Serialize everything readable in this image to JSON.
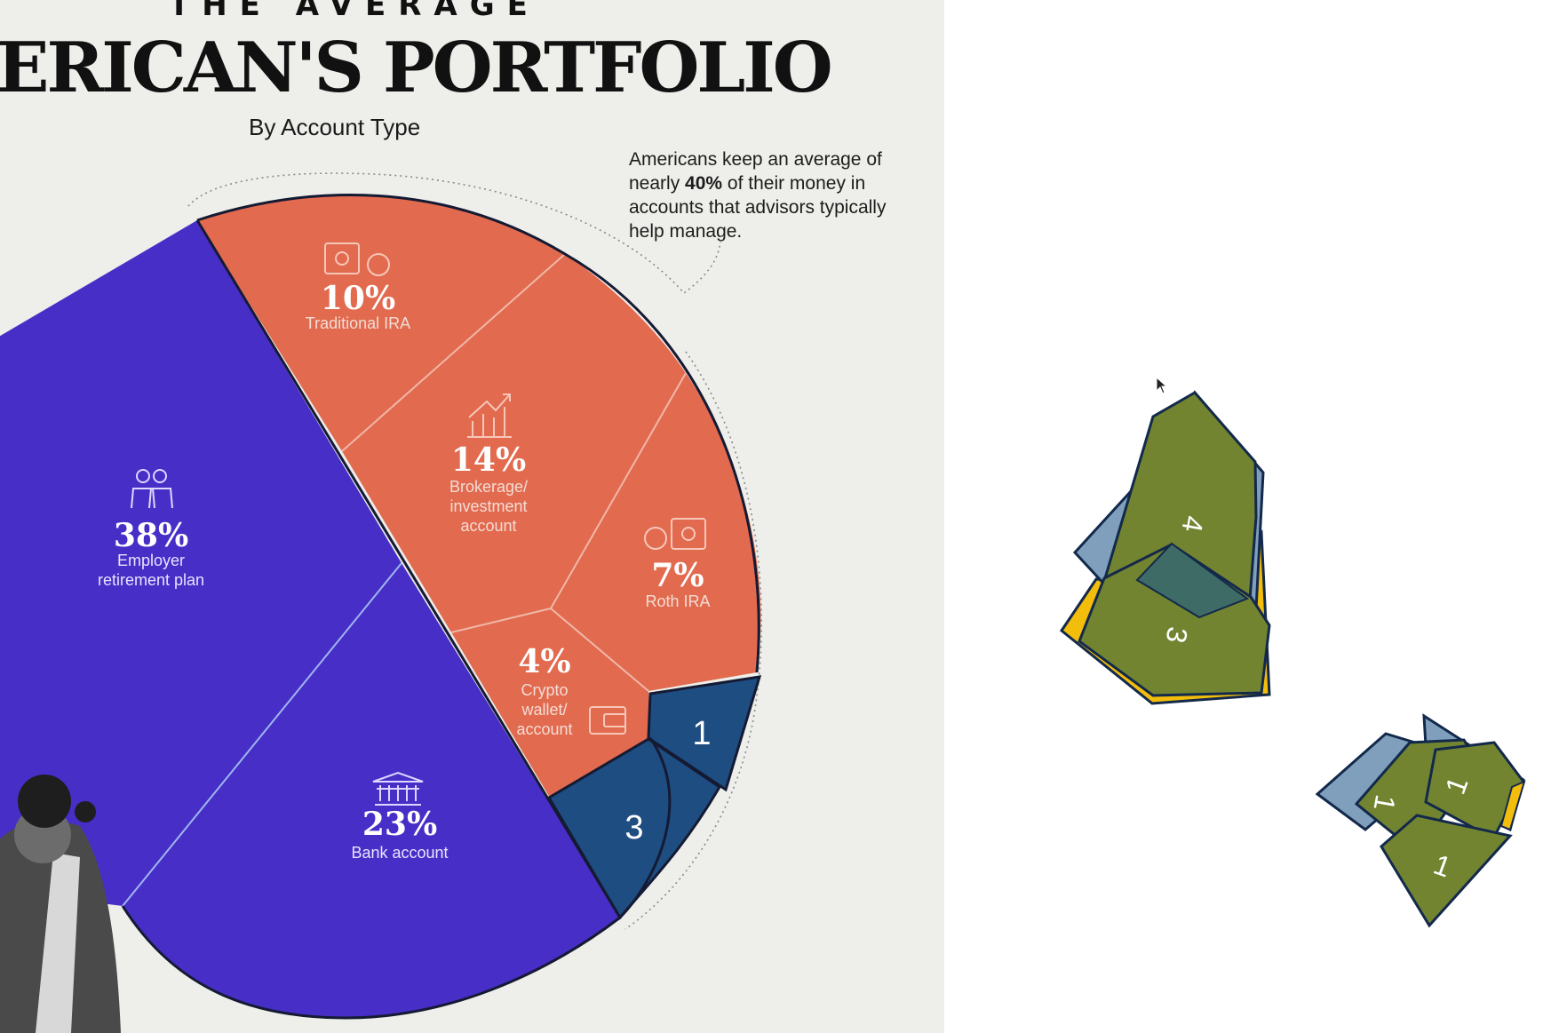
{
  "header": {
    "kicker": "THE AVERAGE",
    "title": "ERICAN'S PORTFOLIO",
    "subtitle": "By Account Type"
  },
  "callout": {
    "line1": "Americans keep an average of",
    "line2_pre": "nearly ",
    "line2_bold": "40%",
    "line2_post": " of their money in",
    "line3": "accounts that advisors typically",
    "line4": "help manage."
  },
  "chart_data": {
    "type": "pie",
    "title": "ERICAN'S PORTFOLIO",
    "subtitle": "By Account Type",
    "slices": [
      {
        "label": "Employer retirement plan",
        "label_lines": [
          "Employer",
          "retirement plan"
        ],
        "pct_text": "38%",
        "value": 38,
        "group": "blue",
        "icon": "people-icon"
      },
      {
        "label": "Bank account",
        "label_lines": [
          "Bank account"
        ],
        "pct_text": "23%",
        "value": 23,
        "group": "blue",
        "icon": "bank-icon"
      },
      {
        "label": "Traditional IRA",
        "label_lines": [
          "Traditional IRA"
        ],
        "pct_text": "10%",
        "value": 10,
        "group": "orange",
        "icon": "safe-tax-icon"
      },
      {
        "label": "Brokerage/ investment account",
        "label_lines": [
          "Brokerage/",
          "investment",
          "account"
        ],
        "pct_text": "14%",
        "value": 14,
        "group": "orange",
        "icon": "growth-chart-icon"
      },
      {
        "label": "Roth IRA",
        "label_lines": [
          "Roth IRA"
        ],
        "pct_text": "7%",
        "value": 7,
        "group": "orange",
        "icon": "tax-safe-icon"
      },
      {
        "label": "Crypto wallet/ account",
        "label_lines": [
          "Crypto",
          "wallet/",
          "account"
        ],
        "pct_text": "4%",
        "value": 4,
        "group": "orange",
        "icon": "wallet-icon"
      }
    ],
    "markers": [
      {
        "number": "1"
      },
      {
        "number": "3"
      }
    ]
  },
  "colors": {
    "blue": "#472ec7",
    "orange": "#e26a4f",
    "navy": "#1e4d82",
    "outline": "#151a33",
    "panel": "#eeeeea"
  },
  "canvas": {
    "shape_group_a": [
      "4",
      "3"
    ],
    "shape_group_b": [
      "1",
      "1",
      "1"
    ],
    "colors": {
      "olive": "#728430",
      "steel": "#7f9fbd",
      "gold": "#f3bd0b",
      "teal": "#3e6b66",
      "edge": "#13294b"
    }
  }
}
